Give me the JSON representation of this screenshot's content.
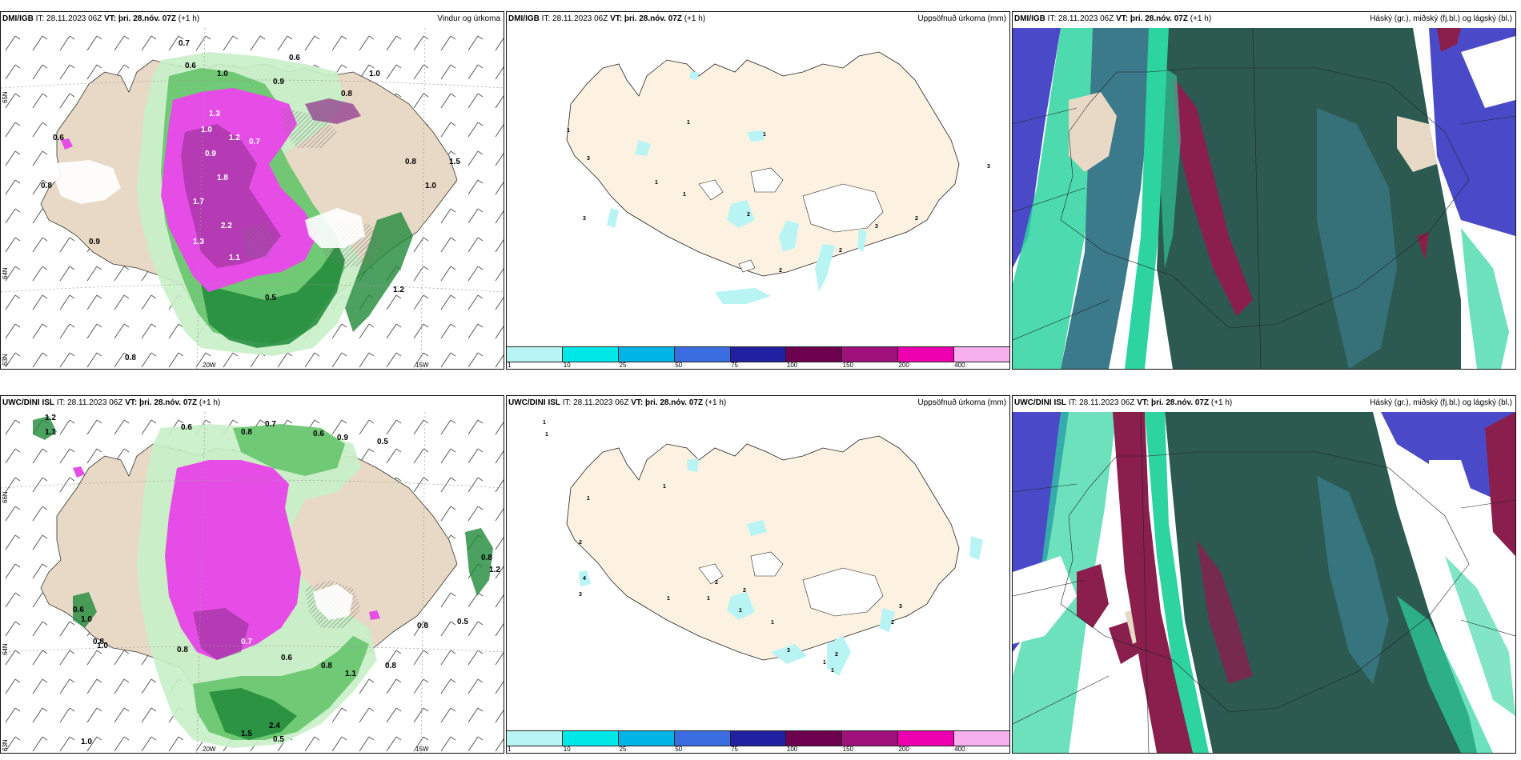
{
  "panels": [
    {
      "model": "DMI/IGB",
      "it_label": "IT:",
      "it_value": "28.11.2023 06Z",
      "vt_label": "VT:",
      "vt_value": "þri. 28.nóv. 07Z",
      "lead": "(+1 h)",
      "product": "Vindur og úrkoma",
      "axis": {
        "lat_top": "65N",
        "lat_mid": "64N",
        "lat_bot": "63N",
        "lon_left": "20W",
        "lon_right": "15W"
      },
      "values": [
        "0.7",
        "0.6",
        "0.6",
        "1.0",
        "1.0",
        "0.8",
        "0.9",
        "0.8",
        "1.3",
        "1.2",
        "0.7",
        "0.9",
        "1.7",
        "1.8",
        "2.2",
        "0.5",
        "1.0",
        "1.1",
        "0.9",
        "0.8",
        "1.0",
        "1.5",
        "1.2",
        "1.3",
        "0.6",
        "0.8"
      ]
    },
    {
      "model": "DMI/IGB",
      "it_label": "IT:",
      "it_value": "28.11.2023 06Z",
      "vt_label": "VT:",
      "vt_value": "þri. 28.nóv. 07Z",
      "lead": "(+1 h)",
      "product": "Uppsöfnuð úrkoma (mm)",
      "values": [
        "1",
        "1",
        "1",
        "3",
        "3",
        "1",
        "2",
        "2",
        "2",
        "3",
        "2",
        "3",
        "1"
      ]
    },
    {
      "model": "DMI/IGB",
      "it_label": "IT:",
      "it_value": "28.11.2023 06Z",
      "vt_label": "VT:",
      "vt_value": "þri. 28.nóv. 07Z",
      "lead": "(+1 h)",
      "product": "Háský (gr.), miðský (fj.bl.) og lágský (bl.)"
    },
    {
      "model": "UWC/DINI ISL",
      "it_label": "IT:",
      "it_value": "28.11.2023 06Z",
      "vt_label": "VT:",
      "vt_value": "þri. 28.nóv. 07Z",
      "lead": "(+1 h)",
      "product": "",
      "axis": {
        "lat_top": "66N",
        "lat_mid": "64N",
        "lat_bot": "63N",
        "lon_left": "20W",
        "lon_right": "15W"
      },
      "values": [
        "1.2",
        "1.1",
        "0.6",
        "0.8",
        "0.7",
        "0.6",
        "0.9",
        "0.5",
        "0.6",
        "1.0",
        "0.8",
        "0.8",
        "0.7",
        "0.6",
        "0.8",
        "1.1",
        "0.8",
        "0.6",
        "0.5",
        "2.4",
        "1.5",
        "0.5",
        "1.0",
        "0.8",
        "1.2",
        "1.0"
      ]
    },
    {
      "model": "UWC/DINI ISL",
      "it_label": "IT:",
      "it_value": "28.11.2023 06Z",
      "vt_label": "VT:",
      "vt_value": "þri. 28.nóv. 07Z",
      "lead": "(+1 h)",
      "product": "Uppsöfnuð úrkoma (mm)",
      "values": [
        "1",
        "1",
        "1",
        "2",
        "4",
        "3",
        "1",
        "1",
        "2",
        "1",
        "1",
        "2",
        "3",
        "1",
        "1",
        "2",
        "2",
        "3",
        "1"
      ]
    },
    {
      "model": "UWC/DINI ISL",
      "it_label": "IT:",
      "it_value": "28.11.2023 06Z",
      "vt_label": "VT:",
      "vt_value": "þri. 28.nóv. 07Z",
      "lead": "(+1 h)",
      "product": "Háský (gr.), miðský (fj.bl.) og lágský (bl.)"
    }
  ],
  "legend": {
    "ticks": [
      "1",
      "10",
      "25",
      "50",
      "75",
      "100",
      "150",
      "200",
      "400"
    ],
    "colors": [
      "#b8f4f4",
      "#00e8e8",
      "#00b4e6",
      "#3a6ee0",
      "#2020a0",
      "#6e0050",
      "#a0107a",
      "#ee00b0",
      "#f6b0f0"
    ]
  },
  "colors": {
    "land": "#fdf1e2",
    "precip_light": "#c6f0c6",
    "precip_mid": "#66c46a",
    "precip_dark": "#1f8a3a",
    "precip_magenta": "#e64de6",
    "precip_purple": "#8a2e8a",
    "cloud_high": "#2c5a50",
    "cloud_mid": "#8a1e4c",
    "cloud_low": "#4a4ac8",
    "cloud_green": "#2ed4a0"
  }
}
